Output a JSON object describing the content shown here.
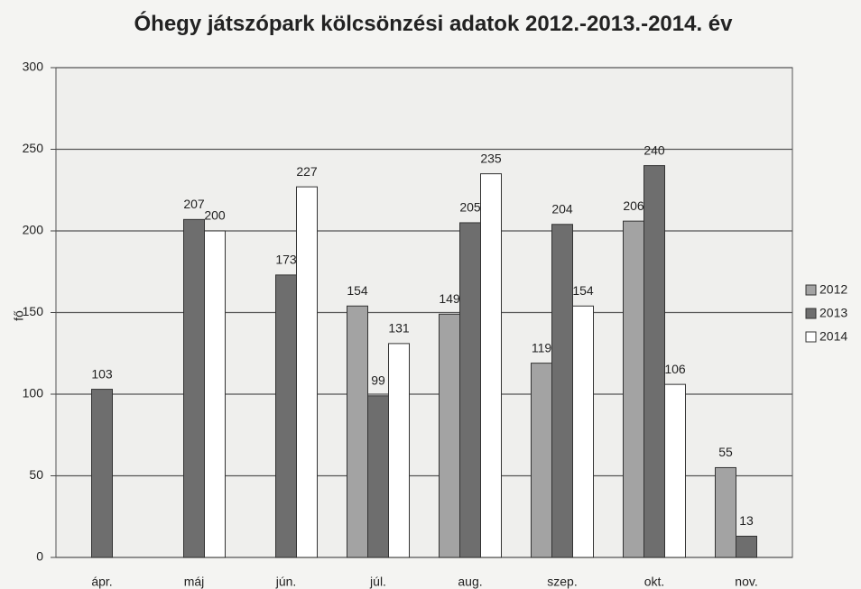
{
  "chart_data": {
    "type": "bar",
    "title": "Óhegy játszópark kölcsönzési adatok 2012.-2013.-2014. év",
    "y_label": "fő",
    "categories": [
      "ápr.",
      "máj",
      "jún.",
      "júl.",
      "aug.",
      "szep.",
      "okt.",
      "nov."
    ],
    "series": [
      {
        "name": "2012",
        "color": "#a3a3a3",
        "values": [
          null,
          null,
          null,
          154,
          149,
          119,
          206,
          55
        ]
      },
      {
        "name": "2013",
        "color": "#6e6e6e",
        "values": [
          103,
          207,
          173,
          99,
          205,
          204,
          240,
          13
        ]
      },
      {
        "name": "2014",
        "color": "#ffffff",
        "values": [
          null,
          200,
          227,
          131,
          235,
          154,
          106,
          null
        ]
      }
    ],
    "ylim": [
      0,
      300
    ],
    "yticks": [
      0,
      50,
      100,
      150,
      200,
      250,
      300
    ],
    "grid": true,
    "legend": "right"
  }
}
